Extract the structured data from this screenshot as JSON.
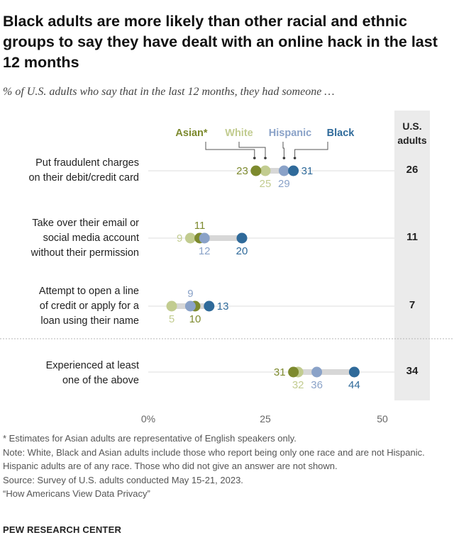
{
  "title": "Black adults are more likely than other racial and ethnic groups to say they have dealt with an online hack in the last 12 months",
  "subtitle": "% of U.S. adults who say that in the last 12 months, they had someone …",
  "colors": {
    "Asian*": "#7d8a2e",
    "White": "#c2cc90",
    "Hispanic": "#8aa2c8",
    "Black": "#2f6a9a",
    "bar": "#d7d7d7",
    "band": "#ebebeb"
  },
  "us_column_header": [
    "U.S.",
    "adults"
  ],
  "chart_data": {
    "type": "dot",
    "series_names": [
      "Asian*",
      "White",
      "Hispanic",
      "Black"
    ],
    "xlim": [
      0,
      50
    ],
    "ticks": [
      0,
      25,
      50
    ],
    "tick_labels": [
      "0%",
      "25",
      "50"
    ],
    "rows": [
      {
        "label": [
          "Put fraudulent charges",
          "on their debit/credit card"
        ],
        "values": {
          "Asian*": 23,
          "White": 25,
          "Hispanic": 29,
          "Black": 31
        },
        "us_adults": 26
      },
      {
        "label": [
          "Take over their email or",
          "social media account",
          "without their permission"
        ],
        "values": {
          "Asian*": 11,
          "White": 9,
          "Hispanic": 12,
          "Black": 20
        },
        "us_adults": 11
      },
      {
        "label": [
          "Attempt to open a line",
          "of credit or apply for a",
          "loan using their name"
        ],
        "values": {
          "Asian*": 10,
          "White": 5,
          "Hispanic": 9,
          "Black": 13
        },
        "us_adults": 7
      },
      {
        "label": [
          "Experienced at least",
          "one of the above"
        ],
        "values": {
          "Asian*": 31,
          "White": 32,
          "Hispanic": 36,
          "Black": 44
        },
        "us_adults": 34
      }
    ]
  },
  "notes": [
    "* Estimates for Asian adults are representative of English speakers only.",
    "Note: White, Black and Asian adults include those who report being only one race and are not Hispanic. Hispanic adults are of any race. Those who did not give an answer are not shown.",
    "Source: Survey of U.S. adults conducted May 15-21, 2023.",
    "“How Americans View Data Privacy”"
  ],
  "brand": "PEW RESEARCH CENTER"
}
